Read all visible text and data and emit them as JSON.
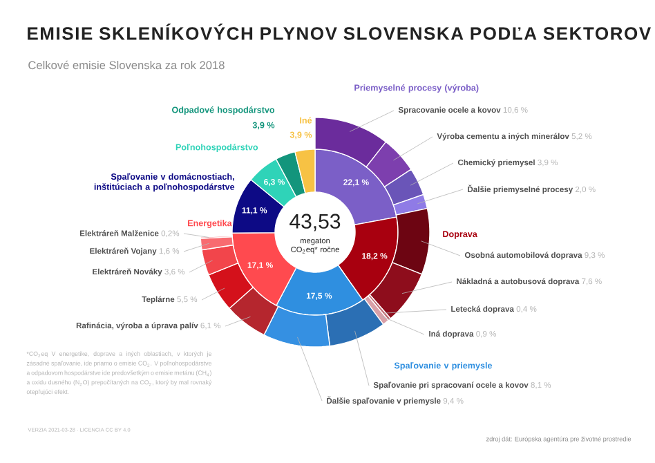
{
  "chart_data": [
    {
      "type": "donut",
      "title": "EMISIE SKLENÍKOVÝCH PLYNOV SLOVENSKA PODĽA SEKTOROV",
      "subtitle": "Celkové emisie Slovenska za rok 2018",
      "categories": [
        "Priemyselné procesy (výroba)",
        "Doprava",
        "Spaľovanie v priemysle",
        "Energetika",
        "Spaľovanie v domácnostiach, inštitúciach a poľnohospodárstve",
        "Poľnohospodárstvo",
        "Odpadové hospodárstvo",
        "Iné"
      ],
      "values": [
        22.1,
        18.2,
        17.5,
        17.1,
        11.1,
        6.3,
        3.9,
        3.9
      ],
      "colors": [
        "#7b5fc7",
        "#a8000f",
        "#2f8fe0",
        "#ff4a4f",
        "#0d0a85",
        "#2fd3b8",
        "#13957c",
        "#f7c244"
      ],
      "value_labels": [
        "22,1 %",
        "18,2 %",
        "17,5 %",
        "17,1 %",
        "11,1 %",
        "6,3 %",
        "3,9 %",
        "3,9 %"
      ],
      "annotations": [
        "43,53",
        "megaton CO$_{2}$eq* ročne",
        "*CO$_{2}$eq V energetike, doprave a iných oblastiach, v ktorých je zásadné spaľovanie, ide priamo o emisie CO$_{2}$. V poľnohospodárstve a odpadovom hospodárstve ide predovšetkým o emisie metánu (CH$_{4}$) a oxidu dusného (N$_{2}$O) prepočítaných na CO$_{2}$, ktorý by mal rovnaký otepľujúci efekt.",
        "VERZIA 2021-03-28 · LICENCIA CC BY 4.0",
        "zdroj dát: Európska agentúra pre životné prostredie"
      ]
    },
    {
      "type": "donut",
      "categories": [
        "Spracovanie ocele a kovov",
        "Výroba cementu a iných minerálov",
        "Chemický priemysel",
        "Ďalšie priemyselné procesy",
        "Osobná automobilová doprava",
        "Nákladná a autobusová doprava",
        "Letecká doprava",
        "Iná doprava",
        "Spaľovanie pri spracovaní ocele a kovov",
        "Ďalšie spaľovanie v priemysle",
        "Rafinácia, výroba a úprava palív",
        "Teplárne",
        "Elektráreň Nováky",
        "Elektráreň Vojany",
        "Elektráreň Malženice"
      ],
      "values": [
        10.6,
        5.2,
        3.9,
        2.0,
        9.3,
        7.6,
        0.4,
        0.9,
        8.1,
        9.4,
        6.1,
        5.5,
        3.6,
        1.6,
        0.2
      ],
      "colors": [
        "#6b2c9c",
        "#7d3fae",
        "#6a55b8",
        "#8f7be6",
        "#6d0512",
        "#8e0d1c",
        "#c06c74",
        "#d9a0a8",
        "#2b6fb4",
        "#3590e2",
        "#b5262e",
        "#d4111b",
        "#f2454b",
        "#f86b70",
        "#f59aa0"
      ],
      "value_labels": [
        "10,6 %",
        "5,2 %",
        "3,9 %",
        "2,0 %",
        "9,3 %",
        "7,6 %",
        "0,4 %",
        "0,9 %",
        "8,1 %",
        "9,4 %",
        "6,1 %",
        "5,5 %",
        "3,6 %",
        "1,6 %",
        "0,2%"
      ]
    }
  ]
}
